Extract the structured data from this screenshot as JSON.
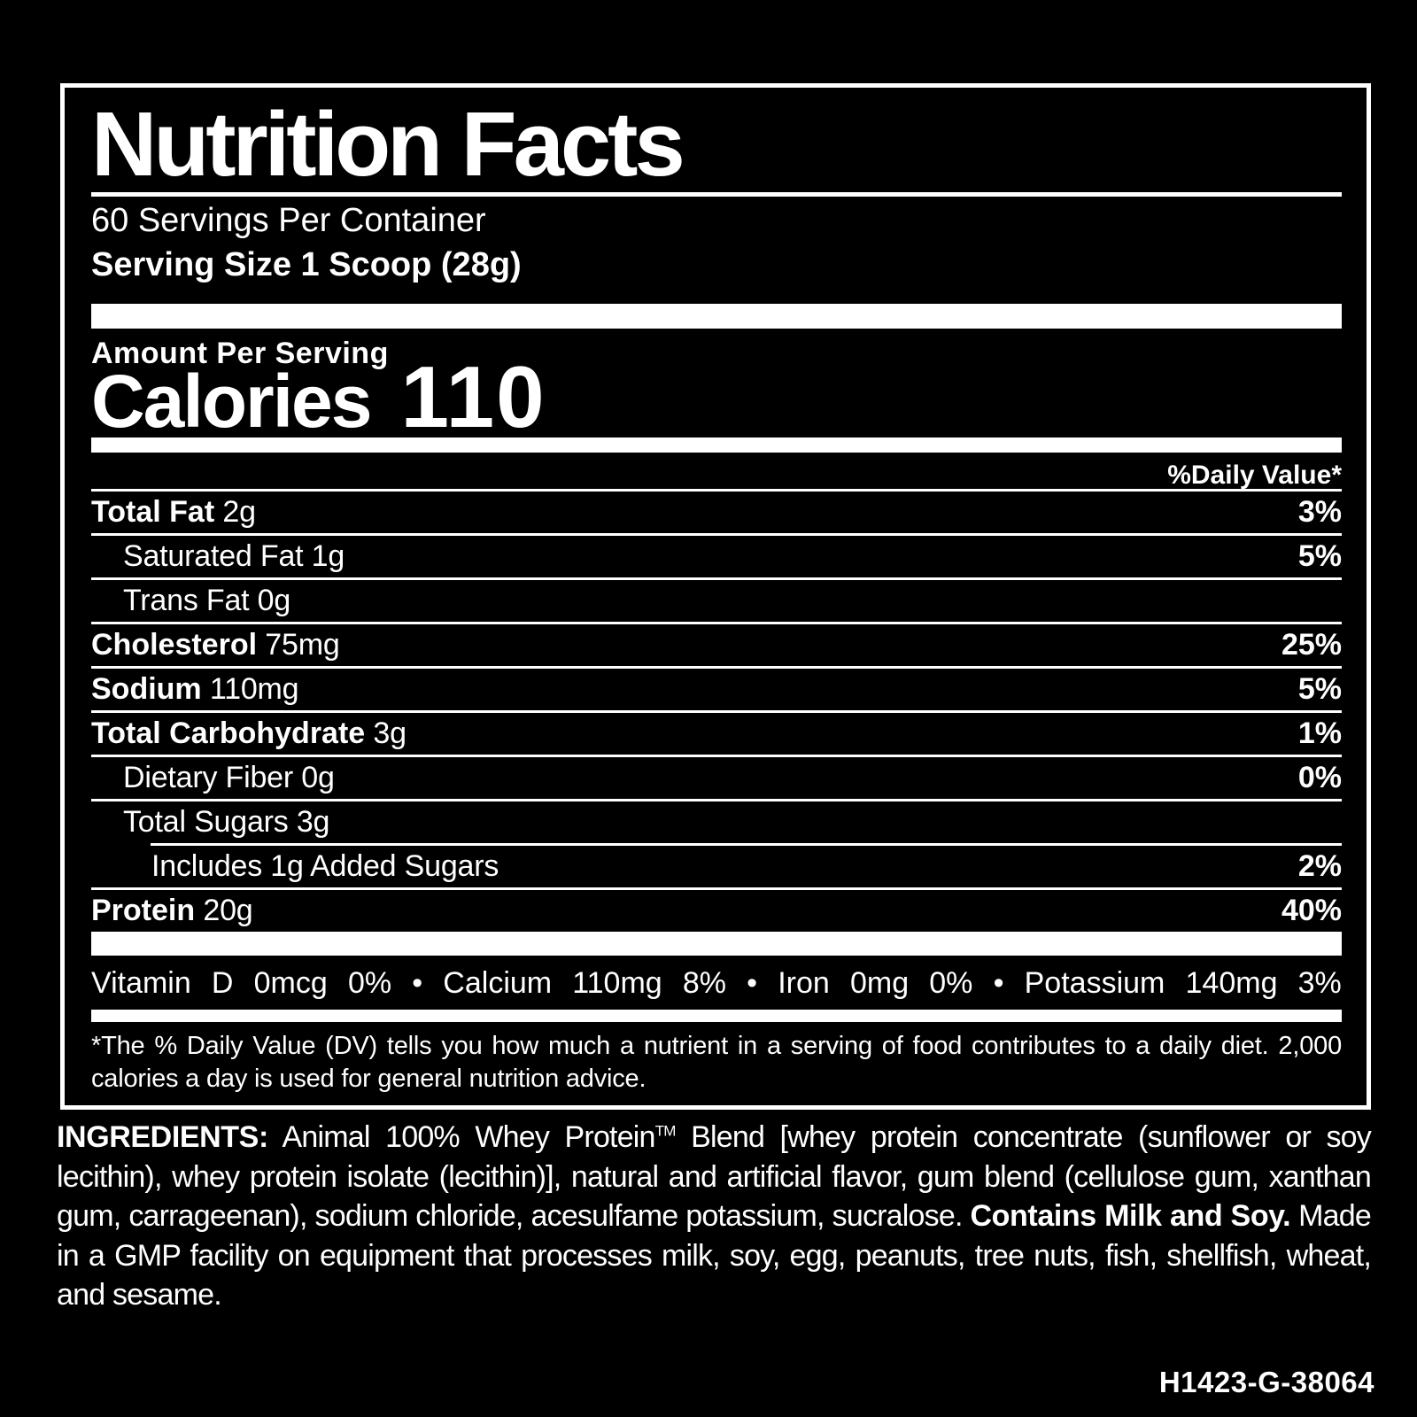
{
  "colors": {
    "background": "#000000",
    "foreground": "#ffffff"
  },
  "label": {
    "title": "Nutrition Facts",
    "servings_per_container": "60 Servings Per Container",
    "serving_size": "Serving Size 1 Scoop (28g)",
    "amount_per_serving": "Amount Per Serving",
    "calories_label": "Calories",
    "calories_value": "110",
    "daily_value_header": "%Daily Value*",
    "nutrient_rows": [
      {
        "name": "Total Fat",
        "amount": "2g",
        "dv": "3%",
        "bold": true,
        "indent": 0,
        "rule_indent": false
      },
      {
        "name": "Saturated Fat",
        "amount": "1g",
        "dv": "5%",
        "bold": false,
        "indent": 1,
        "rule_indent": false
      },
      {
        "name": "Trans Fat",
        "amount": "0g",
        "dv": "",
        "bold": false,
        "indent": 1,
        "rule_indent": false
      },
      {
        "name": "Cholesterol",
        "amount": "75mg",
        "dv": "25%",
        "bold": true,
        "indent": 0,
        "rule_indent": false
      },
      {
        "name": "Sodium",
        "amount": "110mg",
        "dv": "5%",
        "bold": true,
        "indent": 0,
        "rule_indent": false
      },
      {
        "name": "Total Carbohydrate",
        "amount": "3g",
        "dv": "1%",
        "bold": true,
        "indent": 0,
        "rule_indent": false
      },
      {
        "name": "Dietary Fiber",
        "amount": "0g",
        "dv": "0%",
        "bold": false,
        "indent": 1,
        "rule_indent": false
      },
      {
        "name": "Total Sugars",
        "amount": "3g",
        "dv": "",
        "bold": false,
        "indent": 1,
        "rule_indent": false
      },
      {
        "name": "Includes 1g Added Sugars",
        "amount": "",
        "dv": "2%",
        "bold": false,
        "indent": 2,
        "rule_indent": true
      },
      {
        "name": "Protein",
        "amount": "20g",
        "dv": "40%",
        "bold": true,
        "indent": 0,
        "rule_indent": false
      }
    ],
    "micronutrient_tokens": [
      "Vitamin",
      "D",
      "0mcg",
      "0%",
      "•",
      "Calcium",
      "110mg",
      "8%",
      "•",
      "Iron",
      "0mg",
      "0%",
      "•",
      "Potassium",
      "140mg",
      "3%"
    ],
    "footnote": "*The % Daily Value (DV) tells you how much a nutrient in a serving of food contributes to a daily diet. 2,000 calories a day is used for general nutrition advice."
  },
  "ingredients": {
    "heading": "INGREDIENTS:",
    "segments": [
      {
        "style": "normal",
        "text": " Animal 100% Whey Protein"
      },
      {
        "style": "sup",
        "text": "TM"
      },
      {
        "style": "normal",
        "text": " Blend [whey protein concentrate (sunflower or soy lecithin), whey protein isolate (lecithin)], natural and artificial flavor, gum blend (cellulose gum, xanthan gum, carrageenan), sodium chloride, acesulfame potassium, sucralose. "
      },
      {
        "style": "bold",
        "text": "Contains Milk and Soy."
      },
      {
        "style": "normal",
        "text": " Made in a GMP facility on equipment that processes milk, soy, egg, peanuts, tree nuts, fish, shellfish, wheat, and sesame."
      }
    ]
  },
  "product_code": "H1423-G-38064"
}
